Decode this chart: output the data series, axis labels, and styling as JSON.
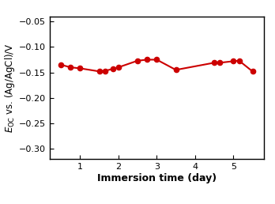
{
  "x": [
    0.5,
    0.75,
    1.0,
    1.5,
    1.65,
    1.85,
    2.0,
    2.5,
    2.75,
    3.0,
    3.5,
    4.5,
    4.65,
    5.0,
    5.15,
    5.5
  ],
  "y": [
    -0.135,
    -0.14,
    -0.142,
    -0.148,
    -0.147,
    -0.143,
    -0.14,
    -0.127,
    -0.125,
    -0.125,
    -0.145,
    -0.131,
    -0.131,
    -0.128,
    -0.127,
    -0.148
  ],
  "color": "#cc0000",
  "linewidth": 1.5,
  "markersize": 4.5,
  "xlabel": "Immersion time (day)",
  "ylabel": "$E_{\\mathrm{OC}}$ vs. (Ag/AgCl)/V",
  "ylim": [
    -0.32,
    -0.04
  ],
  "xlim": [
    0.2,
    5.8
  ],
  "yticks": [
    -0.3,
    -0.25,
    -0.2,
    -0.15,
    -0.1,
    -0.05
  ],
  "xticks": [
    1,
    2,
    3,
    4,
    5
  ],
  "xlabel_fontsize": 9,
  "ylabel_fontsize": 8.5,
  "tick_fontsize": 8,
  "background_color": "#ffffff",
  "black_bar_color": "#000000"
}
